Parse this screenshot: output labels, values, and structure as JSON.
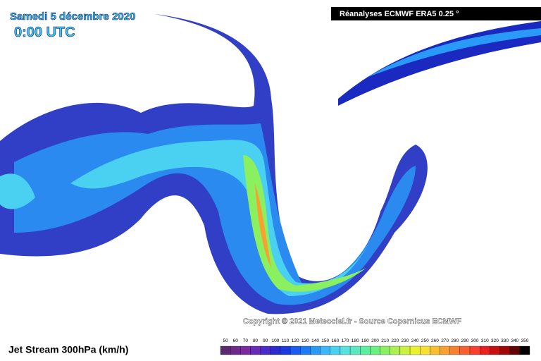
{
  "header": {
    "date": "Samedi 5 décembre 2020",
    "time": "0:00 UTC",
    "source_box": "Réanalyses ECMWF ERA5 0.25 °"
  },
  "copyright": "Copyright © 2021 Meteociel.fr - Source Copernicus ECMWF",
  "legend": {
    "title": "Jet Stream 300hPa (km/h)",
    "labels": [
      50,
      60,
      70,
      80,
      90,
      100,
      110,
      120,
      130,
      140,
      150,
      160,
      170,
      180,
      190,
      200,
      210,
      220,
      230,
      240,
      250,
      260,
      270,
      280,
      290,
      300,
      310,
      320,
      330,
      340,
      350
    ],
    "colors": [
      "#5a2a6e",
      "#6e2a8a",
      "#7a2aa0",
      "#6a2ab8",
      "#4a2ac8",
      "#2a2ad0",
      "#1a3ae0",
      "#1a5af0",
      "#1a7af8",
      "#2a9af8",
      "#3ab8f8",
      "#4ad0f0",
      "#5ae0e0",
      "#5ae8c0",
      "#5af0a0",
      "#6af080",
      "#8af060",
      "#aaf050",
      "#caf040",
      "#eaf030",
      "#f8e030",
      "#f8c030",
      "#f8a030",
      "#f88030",
      "#f86030",
      "#f84030",
      "#e82020",
      "#c81010",
      "#a00808",
      "#600404",
      "#000000"
    ]
  }
}
